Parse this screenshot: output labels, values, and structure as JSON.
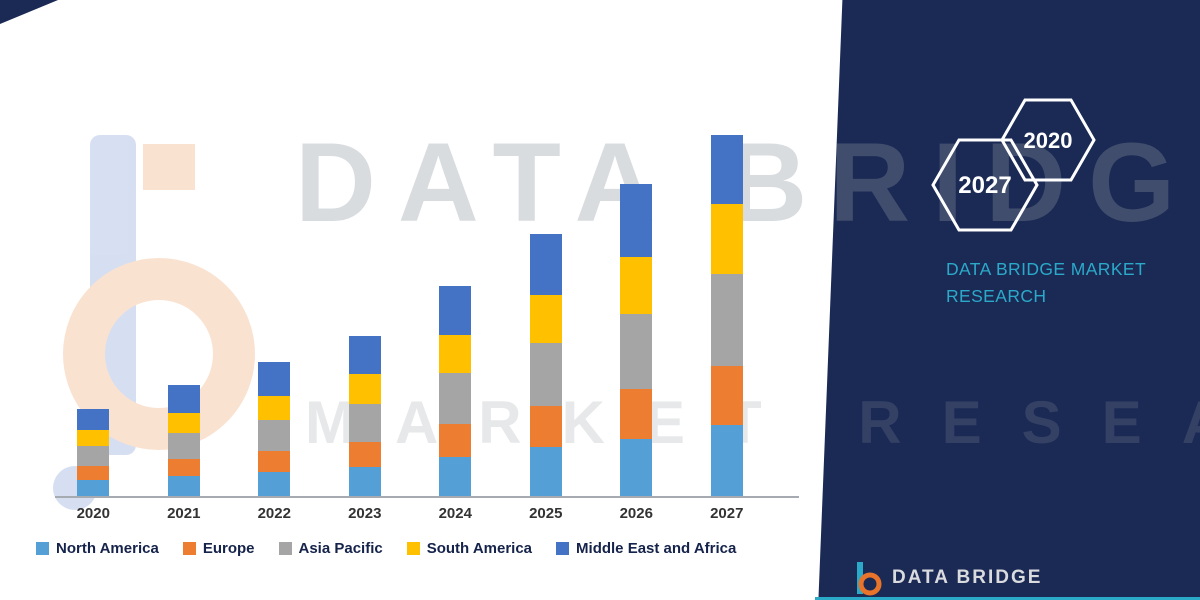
{
  "watermarks": {
    "line1": "DATA BRIDGE",
    "line2": "MARKET RESEARCH"
  },
  "brand_panel": {
    "hexagons": [
      {
        "label": "2027"
      },
      {
        "label": "2020"
      }
    ],
    "tagline": "DATA BRIDGE MARKET RESEARCH"
  },
  "footer": {
    "logo_text": "DATA BRIDGE"
  },
  "colors": {
    "navy": "#1b2a55",
    "teal": "#2ba9c9",
    "orange": "#ED7D31"
  },
  "chart_data": {
    "type": "bar",
    "stacked": true,
    "categories": [
      "2020",
      "2021",
      "2022",
      "2023",
      "2024",
      "2025",
      "2026",
      "2027"
    ],
    "series": [
      {
        "name": "North America",
        "color": "#54A0D6",
        "values": [
          17,
          21,
          25,
          30,
          40,
          50,
          58,
          72
        ]
      },
      {
        "name": "Europe",
        "color": "#ED7D31",
        "values": [
          14,
          17,
          21,
          25,
          33,
          41,
          49,
          58
        ]
      },
      {
        "name": "Asia Pacific",
        "color": "#A5A5A5",
        "values": [
          20,
          26,
          31,
          38,
          50,
          62,
          75,
          92
        ]
      },
      {
        "name": "South America",
        "color": "#FFC000",
        "values": [
          16,
          20,
          24,
          29,
          38,
          48,
          57,
          70
        ]
      },
      {
        "name": "Middle East and Africa",
        "color": "#4472C4",
        "values": [
          21,
          27,
          33,
          38,
          49,
          61,
          72,
          68
        ]
      }
    ],
    "xlabel": "",
    "ylabel": "",
    "ylim": [
      0,
      400
    ],
    "grid": false,
    "legend_position": "bottom"
  }
}
